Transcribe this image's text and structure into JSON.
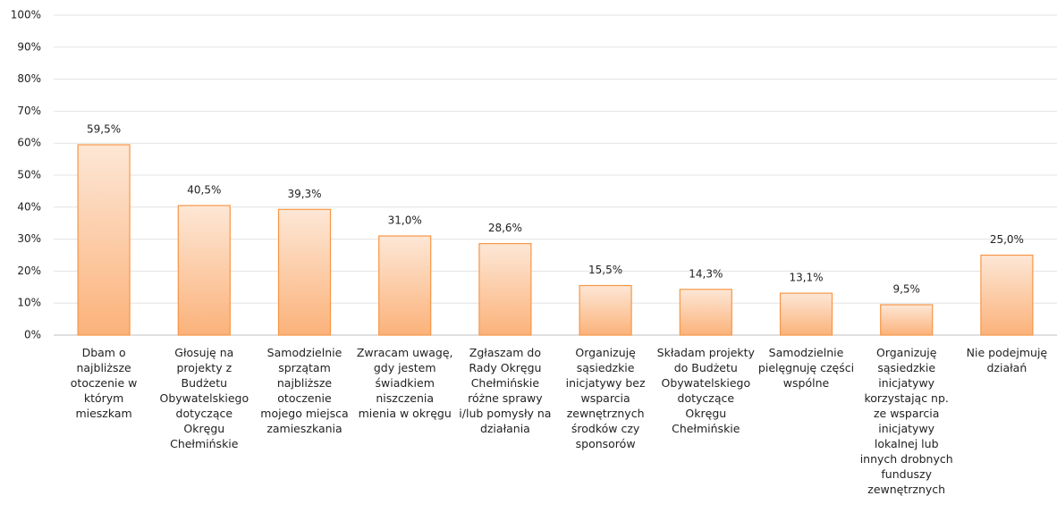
{
  "chart_data": {
    "type": "bar",
    "categories": [
      "Dbam o najbliższe otoczenie w którym mieszkam",
      "Głosuję na projekty z Budżetu Obywatelskiego dotyczące Okręgu Chełmińskie",
      "Samodzielnie sprzątam najbliższe otoczenie mojego miejsca zamieszkania",
      "Zwracam uwagę, gdy jestem świadkiem niszczenia mienia w okręgu",
      "Zgłaszam do Rady Okręgu Chełmińskie różne sprawy i/lub pomysły na działania",
      "Organizuję sąsiedzkie inicjatywy bez wsparcia zewnętrznych środków czy sponsorów",
      "Składam projekty do Budżetu Obywatelskiego dotyczące Okręgu Chełmińskie",
      "Samodzielnie pielęgnuję części wspólne",
      "Organizuję sąsiedzkie inicjatywy korzystając np. ze wsparcia inicjatywy lokalnej lub innych drobnych funduszy zewnętrznych",
      "Nie podejmuję działań"
    ],
    "values": [
      59.5,
      40.5,
      39.3,
      31.0,
      28.6,
      15.5,
      14.3,
      13.1,
      9.5,
      25.0
    ],
    "value_labels": [
      "59,5%",
      "40,5%",
      "39,3%",
      "31,0%",
      "28,6%",
      "15,5%",
      "14,3%",
      "13,1%",
      "9,5%",
      "25,0%"
    ],
    "color": "#f79646",
    "ylim": [
      0,
      100
    ],
    "yticks": [
      {
        "value": 0,
        "label": "0%"
      },
      {
        "value": 10,
        "label": "10%"
      },
      {
        "value": 20,
        "label": "20%"
      },
      {
        "value": 30,
        "label": "30%"
      },
      {
        "value": 40,
        "label": "40%"
      },
      {
        "value": 50,
        "label": "50%"
      },
      {
        "value": 60,
        "label": "60%"
      },
      {
        "value": 70,
        "label": "70%"
      },
      {
        "value": 80,
        "label": "80%"
      },
      {
        "value": 90,
        "label": "90%"
      },
      {
        "value": 100,
        "label": "100%"
      }
    ],
    "grid": true
  }
}
